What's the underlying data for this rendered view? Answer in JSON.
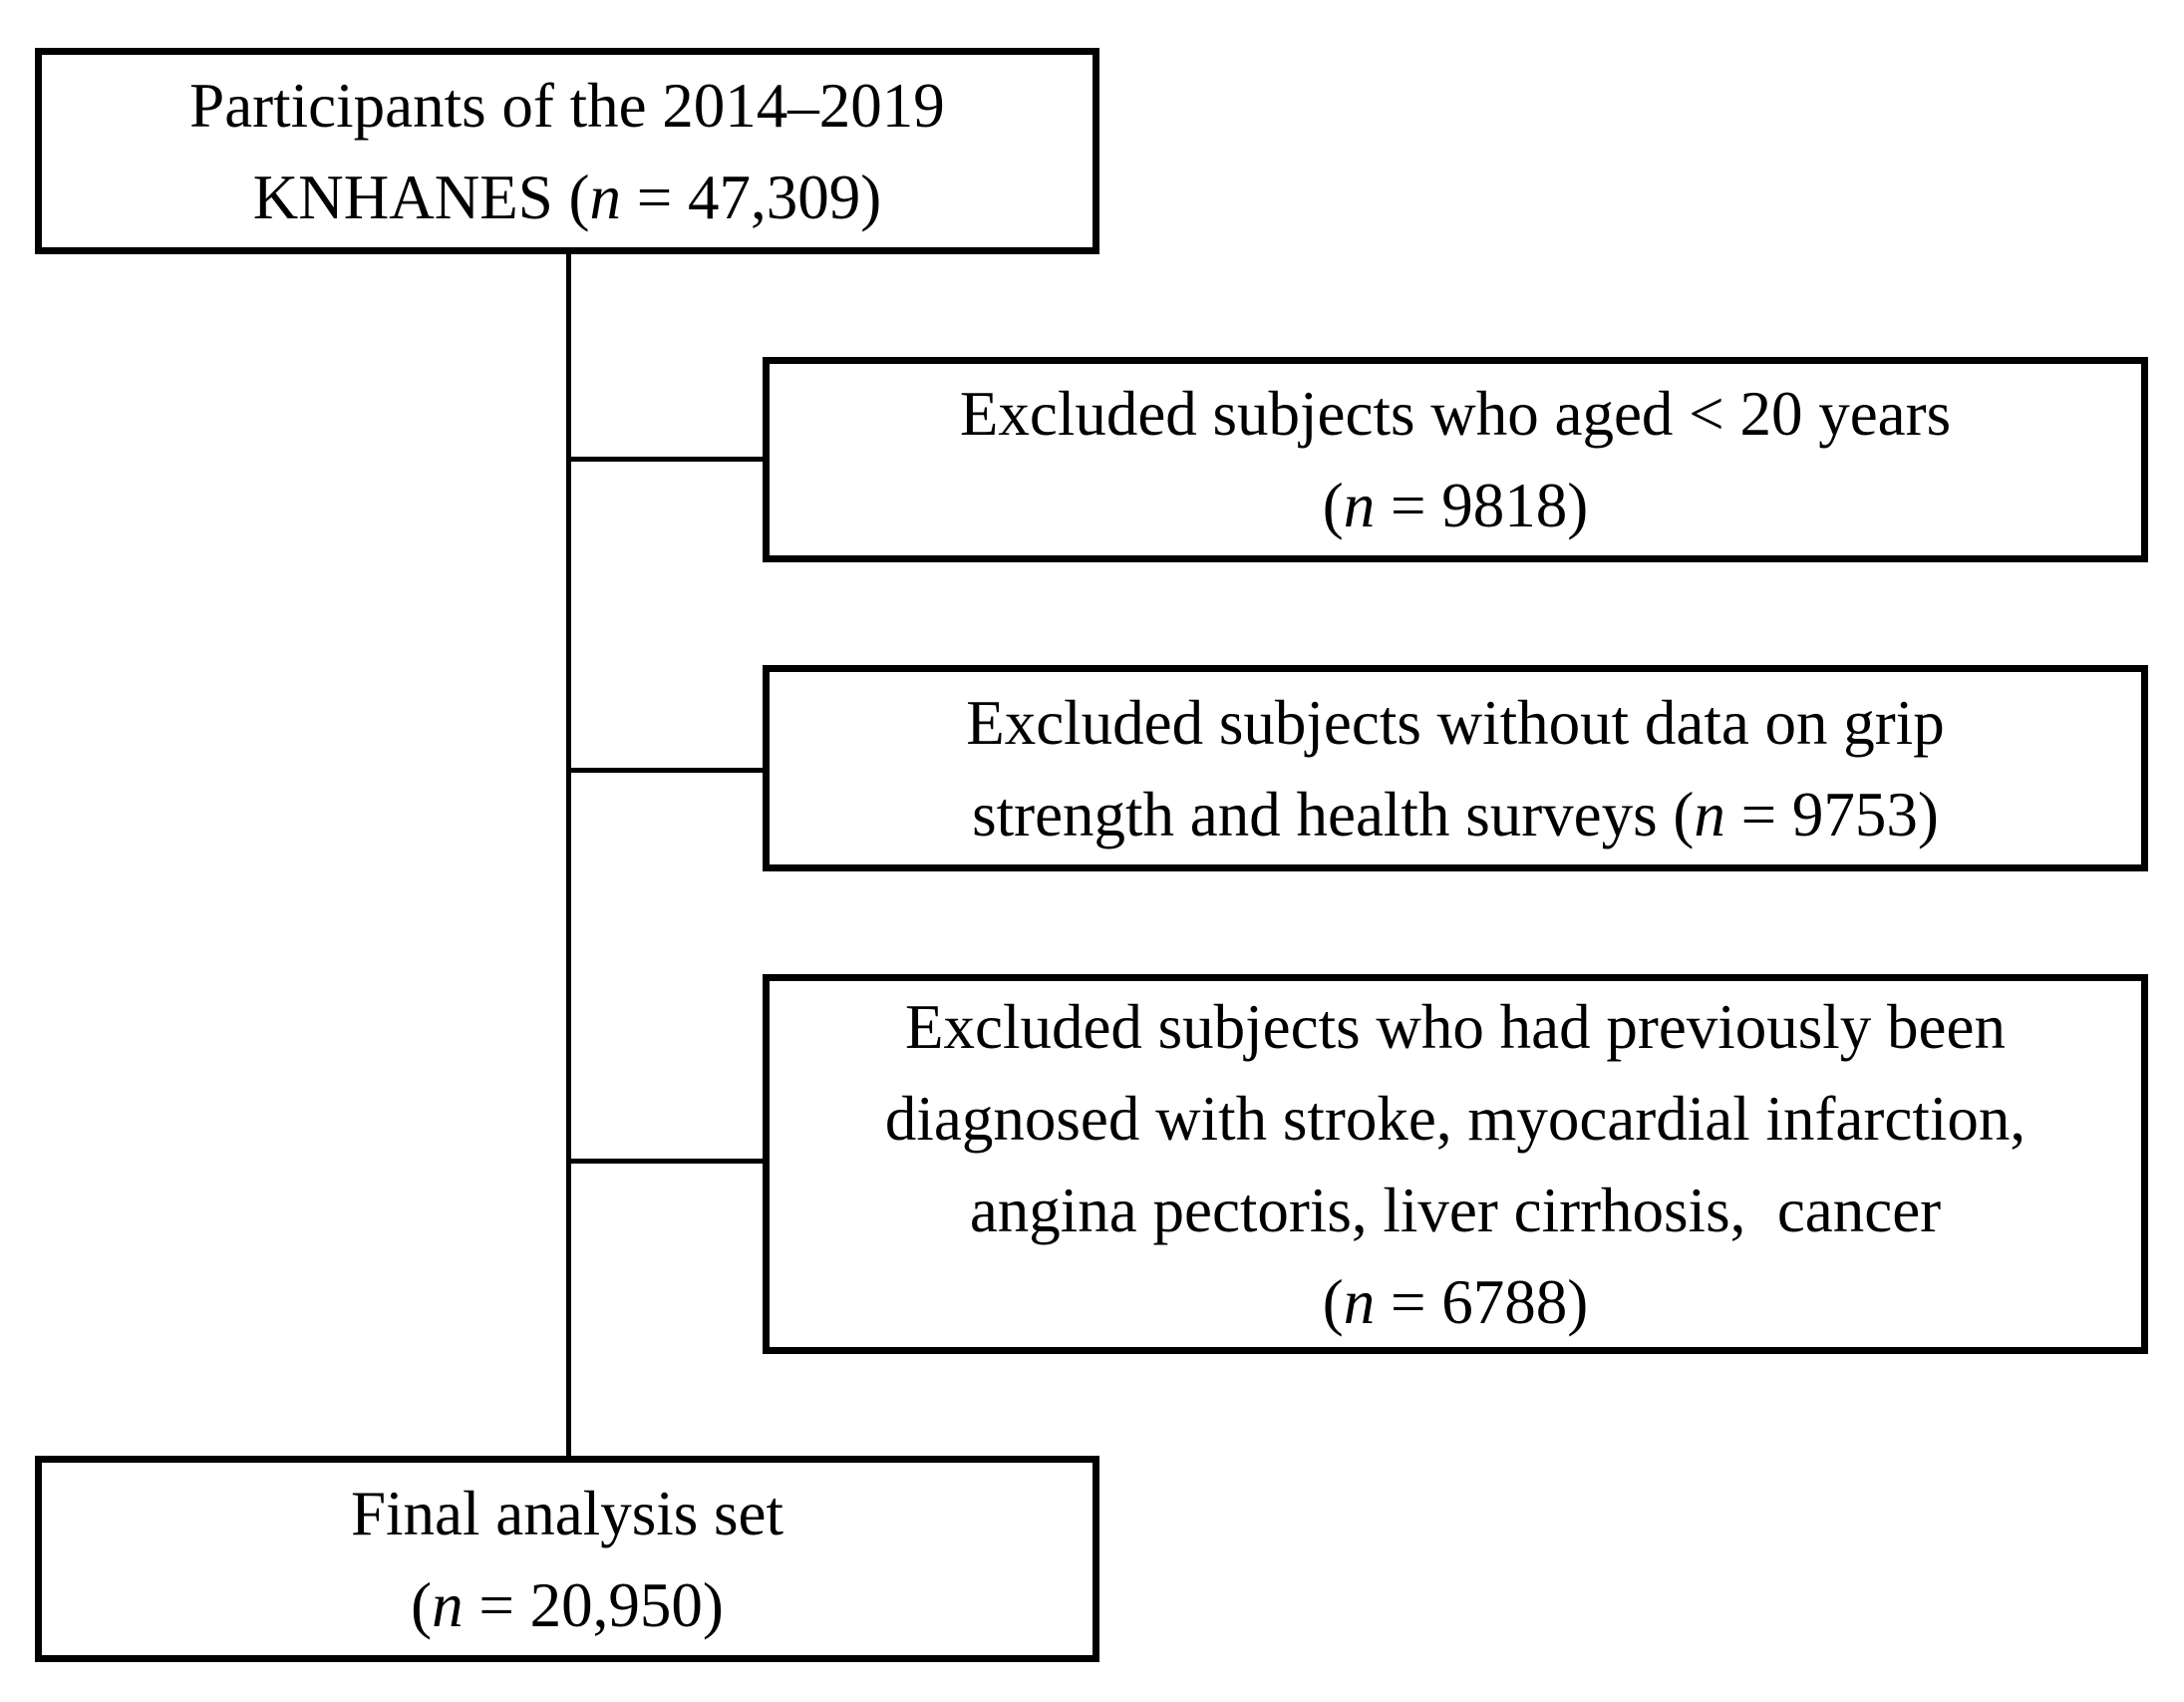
{
  "colors": {
    "border": "#000000",
    "text": "#000000",
    "background": "#ffffff"
  },
  "nodes": {
    "participants": {
      "line1": "Participants of the 2014–2019",
      "line2_pre": "KNHANES (",
      "n_var": "n",
      "line2_post": " = 47,309)"
    },
    "excluded_age": {
      "line1": "Excluded subjects who aged < 20 years",
      "line2_pre": "(",
      "n_var": "n",
      "line2_post": " = 9818)"
    },
    "excluded_grip": {
      "line1": "Excluded subjects without data on grip",
      "line2_pre": "strength and health surveys (",
      "n_var": "n",
      "line2_post": " = 9753)"
    },
    "excluded_diagnosis": {
      "line1": "Excluded subjects who had previously been",
      "line2": "diagnosed with stroke, myocardial infarction,",
      "line3": "angina pectoris, liver cirrhosis,  cancer",
      "line4_pre": "(",
      "n_var": "n",
      "line4_post": " = 6788)"
    },
    "final": {
      "line1": "Final analysis set",
      "line2_pre": "(",
      "n_var": "n",
      "line2_post": " = 20,950)"
    }
  },
  "edges": [
    {
      "from": "participants",
      "to": "excluded_age"
    },
    {
      "from": "participants",
      "to": "excluded_grip"
    },
    {
      "from": "participants",
      "to": "excluded_diagnosis"
    },
    {
      "from": "participants",
      "to": "final"
    }
  ]
}
